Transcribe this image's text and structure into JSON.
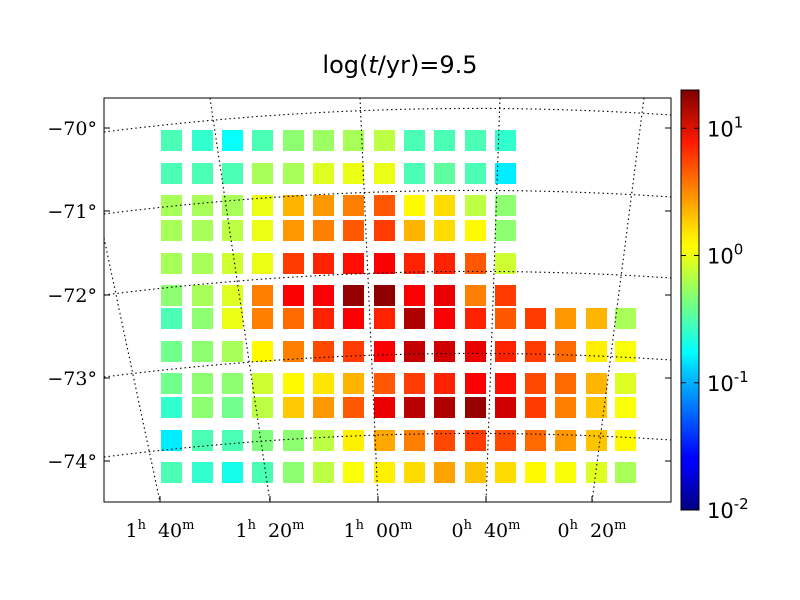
{
  "chart_data": {
    "type": "heatmap",
    "title_prefix": "log(",
    "title_var": "t",
    "title_suffix": "/yr)=9.5",
    "x_tick_labels": [
      {
        "h": "1",
        "m": "40"
      },
      {
        "h": "1",
        "m": "20"
      },
      {
        "h": "1",
        "m": "00"
      },
      {
        "h": "0",
        "m": "40"
      },
      {
        "h": "0",
        "m": "20"
      }
    ],
    "x_tick_unit": {
      "h": "h",
      "m": "m"
    },
    "y_tick_labels": [
      "−70°",
      "−71°",
      "−72°",
      "−73°",
      "−74°"
    ],
    "colorbar": {
      "scale": "log",
      "range": [
        0.01,
        20
      ],
      "colormap": "jet",
      "ticks": [
        {
          "base": "10",
          "exp": "1"
        },
        {
          "base": "10",
          "exp": "0"
        },
        {
          "base": "10",
          "exp": "-1"
        },
        {
          "base": "10",
          "exp": "-2"
        }
      ]
    },
    "grid": true,
    "columns": 16,
    "rows": [
      [
        0.3,
        0.25,
        0.18,
        0.3,
        0.5,
        0.55,
        0.6,
        0.7,
        0.3,
        0.3,
        0.3,
        0.25,
        null,
        null,
        null,
        null
      ],
      [
        0.3,
        0.3,
        0.3,
        0.6,
        0.6,
        0.9,
        1,
        1,
        0.3,
        0.35,
        0.3,
        0.15,
        null,
        null,
        null,
        null
      ],
      [
        0.6,
        0.6,
        0.6,
        1,
        2,
        2.5,
        3,
        4,
        1.2,
        1.5,
        0.7,
        0.5,
        null,
        null,
        null,
        null
      ],
      [
        0.6,
        0.6,
        0.7,
        1,
        2.5,
        3,
        4,
        5,
        2,
        1.5,
        1.2,
        0.5,
        null,
        null,
        null,
        null
      ],
      [
        0.6,
        0.6,
        0.8,
        1,
        5,
        6,
        7,
        8,
        6,
        6,
        4,
        0.8,
        null,
        null,
        null,
        null
      ],
      [
        0.5,
        0.6,
        0.9,
        3,
        8,
        8,
        17,
        18,
        8,
        9,
        3,
        5,
        null,
        null,
        null,
        null
      ],
      [
        0.3,
        0.5,
        1,
        3,
        3.5,
        6,
        8,
        6,
        14,
        8,
        6,
        4,
        5,
        2.5,
        2,
        0.6
      ],
      [
        0.4,
        0.5,
        0.6,
        1.2,
        3,
        4.5,
        5,
        8,
        12,
        11,
        9,
        6,
        5,
        3.5,
        1.3,
        1.1
      ],
      [
        0.4,
        0.5,
        0.5,
        0.8,
        1.2,
        1.4,
        2,
        4,
        5,
        6,
        8,
        7,
        4.5,
        3.5,
        2,
        0.9
      ],
      [
        0.25,
        0.5,
        0.4,
        0.7,
        1.7,
        2.5,
        4,
        9,
        13,
        14,
        17,
        11,
        5,
        3,
        1.8,
        1.1
      ],
      [
        0.15,
        0.3,
        0.3,
        0.45,
        0.5,
        0.7,
        1.3,
        2.2,
        3,
        4.5,
        5,
        4.5,
        3.5,
        2.5,
        1.8,
        1.2
      ],
      [
        0.3,
        0.25,
        0.2,
        0.3,
        0.5,
        0.7,
        1.1,
        1.3,
        1.5,
        2.3,
        1.8,
        1.5,
        1.2,
        1.1,
        0.9,
        0.6
      ]
    ]
  }
}
